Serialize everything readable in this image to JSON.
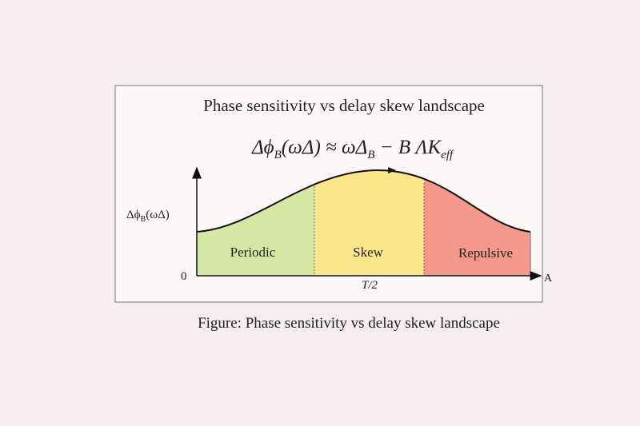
{
  "header": {
    "title": "Phase sensitivity vs delay skew landscape"
  },
  "equation": {
    "parts": [
      "Δϕ",
      "B",
      "(ωΔ) ≈ ωΔ",
      "B",
      " − B ΛK",
      "eff"
    ]
  },
  "axes": {
    "y_label": {
      "main": "Δϕ",
      "sub": "B",
      "rest": "(ωΔ)"
    },
    "origin": "0",
    "x_tick": "T/2",
    "x_label": "A"
  },
  "regions": [
    "Periodic",
    "Skew",
    "Repulsive"
  ],
  "caption": "Figure: Phase sensitivity vs delay skew landscape"
}
